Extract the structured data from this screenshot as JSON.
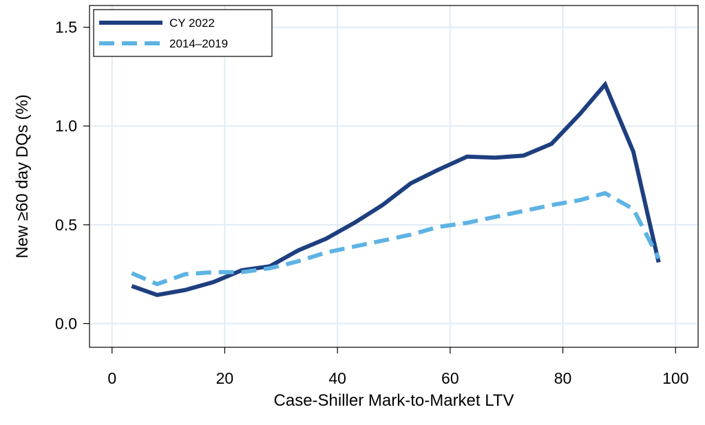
{
  "chart_data": {
    "type": "line",
    "title": "",
    "xlabel": "Case-Shiller Mark-to-Market LTV",
    "ylabel": "New ≥60 day DQs (%)",
    "xlim": [
      -4,
      104
    ],
    "ylim": [
      -0.12,
      1.61
    ],
    "xticks": [
      0,
      20,
      40,
      60,
      80,
      100
    ],
    "yticks": [
      0.0,
      0.5,
      1.0,
      1.5
    ],
    "xtick_labels": [
      "0",
      "20",
      "40",
      "60",
      "80",
      "100"
    ],
    "ytick_labels": [
      "0.0",
      "0.5",
      "1.0",
      "1.5"
    ],
    "grid": true,
    "legend_position": "top-left",
    "series": [
      {
        "name": "CY 2022",
        "color": "#1e3f7f",
        "style": "solid",
        "x": [
          3.5,
          8,
          13,
          18,
          23,
          28,
          33,
          38,
          43,
          48,
          53,
          58,
          63,
          68,
          73,
          78,
          83,
          87.5,
          92.5,
          97
        ],
        "y": [
          0.19,
          0.145,
          0.17,
          0.21,
          0.27,
          0.29,
          0.37,
          0.43,
          0.51,
          0.6,
          0.71,
          0.78,
          0.845,
          0.84,
          0.85,
          0.91,
          1.06,
          1.21,
          0.87,
          0.31
        ]
      },
      {
        "name": "2014–2019",
        "color": "#5db3e3",
        "style": "dashed",
        "x": [
          3.5,
          8,
          13,
          18,
          23,
          28,
          33,
          38,
          43,
          48,
          53,
          58,
          63,
          68,
          73,
          78,
          83,
          87.5,
          92.5,
          97
        ],
        "y": [
          0.255,
          0.2,
          0.25,
          0.26,
          0.26,
          0.28,
          0.315,
          0.36,
          0.39,
          0.42,
          0.45,
          0.49,
          0.51,
          0.54,
          0.57,
          0.6,
          0.625,
          0.66,
          0.58,
          0.33
        ]
      }
    ]
  }
}
